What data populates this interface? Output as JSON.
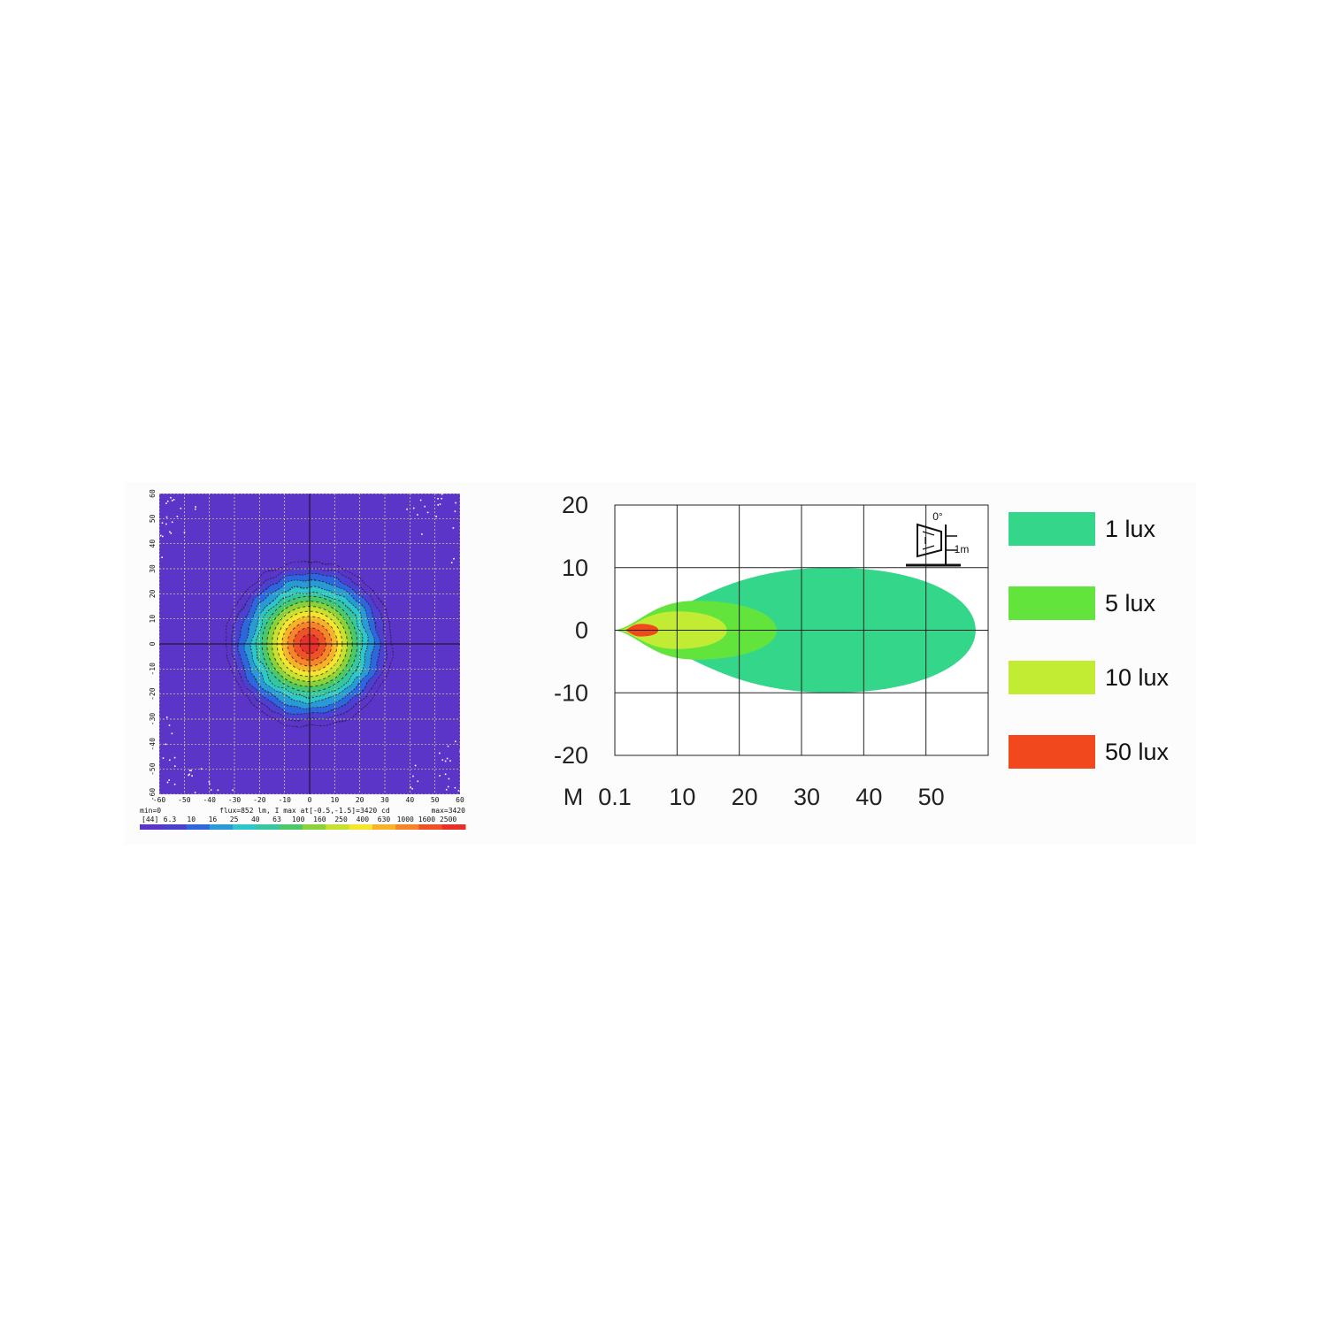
{
  "chart_data": [
    {
      "type": "heatmap",
      "x_ticks": [
        -60,
        -50,
        -40,
        -30,
        -20,
        -10,
        0,
        10,
        20,
        30,
        40,
        50,
        60
      ],
      "y_ticks": [
        60,
        50,
        40,
        30,
        20,
        10,
        0,
        -10,
        -20,
        -30,
        -40,
        -50,
        -60
      ],
      "xlim": [
        -60,
        60
      ],
      "ylim": [
        -60,
        60
      ],
      "grid": true,
      "footer": {
        "min_label": "min=0",
        "info": "flux=852 lm, I max at[-0.5,-1.5]=3420 cd",
        "max_label": "max=3420",
        "scale_key": "[44]",
        "scale_values": [
          "6.3",
          "10",
          "16",
          "25",
          "40",
          "63",
          "100",
          "160",
          "250",
          "400",
          "630",
          "1000",
          "1600",
          "2500"
        ]
      },
      "colors": {
        "background": "#5a35c8",
        "scale": [
          "#5a35c8",
          "#4b3fd0",
          "#2f66de",
          "#2a9ad6",
          "#2fc6c9",
          "#36c6a0",
          "#4ac86a",
          "#8ad23a",
          "#c8e030",
          "#f5e52c",
          "#f8b22a",
          "#f8842a",
          "#f05228",
          "#e8302a"
        ]
      },
      "contours_intensity_cd": [
        6.3,
        10,
        16,
        25,
        40,
        63,
        100,
        160,
        250,
        400,
        630,
        1000,
        1600,
        2500
      ],
      "contours_radius_deg": [
        33,
        30.5,
        28,
        25.5,
        23,
        21,
        19,
        17,
        15,
        13,
        11,
        8.8,
        6.5,
        3.8
      ]
    },
    {
      "type": "area",
      "unit_label": "M",
      "x_ticks": [
        "0.1",
        "10",
        "20",
        "30",
        "40",
        "50"
      ],
      "y_ticks": [
        "20",
        "10",
        "0",
        "-10",
        "-20"
      ],
      "xlim": [
        0,
        60
      ],
      "ylim": [
        -20,
        20
      ],
      "grid": true,
      "inset": {
        "angle_label": "0°",
        "height_label": "1m"
      },
      "series": [
        {
          "name": "1 lux",
          "color": "#34d68a",
          "x_start": 0,
          "x_end": 58,
          "half_width": 10,
          "x_peak": 35
        },
        {
          "name": "5 lux",
          "color": "#62e43c",
          "x_start": 0,
          "x_end": 26,
          "half_width": 4.7,
          "x_peak": 13
        },
        {
          "name": "10 lux",
          "color": "#c2ec34",
          "x_start": 0.5,
          "x_end": 18,
          "half_width": 3,
          "x_peak": 10
        },
        {
          "name": "50 lux",
          "color": "#f2481e",
          "x_start": 1.5,
          "x_end": 7,
          "half_width": 1,
          "x_peak": 4.2
        }
      ],
      "legend": [
        "1 lux",
        "5 lux",
        "10 lux",
        "50 lux"
      ],
      "legend_placement": "right"
    }
  ]
}
